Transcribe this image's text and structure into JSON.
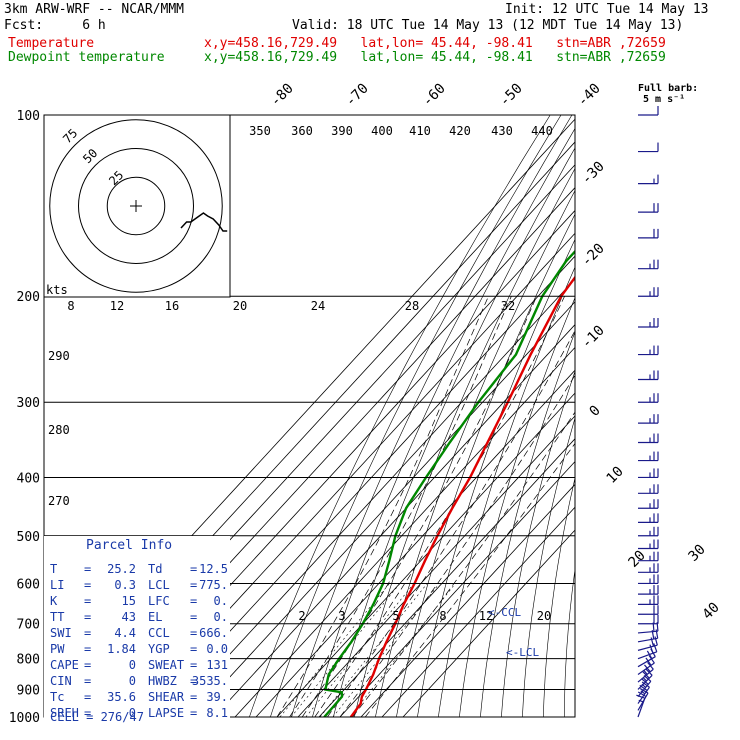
{
  "header": {
    "model": "3km ARW-WRF -- NCAR/MMM",
    "init": "Init: 12 UTC Tue 14 May 13",
    "fcst": "Fcst:     6 h",
    "valid": "Valid: 18 UTC Tue 14 May 13 (12 MDT Tue 14 May 13)",
    "temp_label": "Temperature",
    "temp_loc": "x,y=458.16,729.49   lat,lon= 45.44, -98.41   stn=ABR ,72659",
    "dew_label": "Dewpoint temperature",
    "dew_loc": "x,y=458.16,729.49   lat,lon= 45.44, -98.41   stn=ABR ,72659",
    "full_barb": "Full barb:",
    "full_barb_val": "5 m s⁻¹"
  },
  "colors": {
    "temperature": "#e00000",
    "dewpoint": "#008800",
    "parcel_text": "#1a3aa8",
    "hodograph": "#000000",
    "barbs": "#1a1a8a"
  },
  "chart_data": {
    "type": "line",
    "subtype": "skew-T log-p sounding",
    "y_axis": {
      "label": "",
      "scale": "log",
      "ticks": [
        100,
        200,
        300,
        400,
        500,
        600,
        700,
        800,
        900,
        1000
      ]
    },
    "isotherm_labels": [
      "-80",
      "-70",
      "-60",
      "-50",
      "-40",
      "-30",
      "-20",
      "-10",
      "0",
      "10",
      "20",
      "30",
      "40"
    ],
    "theta_labels": [
      "350",
      "360",
      "390",
      "400",
      "410",
      "420",
      "430",
      "440"
    ],
    "height_labels": [
      "290",
      "280",
      "270"
    ],
    "mixing_ratio_labels": [
      "2",
      "3",
      "5",
      "8",
      "12",
      "20"
    ],
    "hodograph": {
      "units": "kts",
      "ring_labels": [
        "25",
        "50",
        "75"
      ],
      "axis_ticks": [
        "8",
        "12",
        "16",
        "20",
        "24",
        "28",
        "32"
      ]
    },
    "annotations": {
      "ccl": "<-CCL",
      "lcl": "<-LCL"
    },
    "series": [
      {
        "name": "Temperature",
        "points": [
          [
            1000,
            25.2
          ],
          [
            950,
            24.0
          ],
          [
            925,
            21.5
          ],
          [
            900,
            20.3
          ],
          [
            850,
            17.2
          ],
          [
            800,
            13.0
          ],
          [
            750,
            9.2
          ],
          [
            700,
            5.5
          ],
          [
            650,
            1.0
          ],
          [
            600,
            -3.0
          ],
          [
            550,
            -8.0
          ],
          [
            500,
            -13.0
          ],
          [
            450,
            -18.0
          ],
          [
            400,
            -23.0
          ],
          [
            350,
            -30.0
          ],
          [
            300,
            -38.0
          ],
          [
            250,
            -48.0
          ],
          [
            200,
            -59.0
          ],
          [
            175,
            -62.0
          ],
          [
            150,
            -60.0
          ],
          [
            125,
            -59.0
          ],
          [
            110,
            -60.0
          ],
          [
            100,
            -62.0
          ]
        ]
      },
      {
        "name": "Dewpoint temperature",
        "points": [
          [
            1000,
            12.5
          ],
          [
            950,
            12.2
          ],
          [
            925,
            12.0
          ],
          [
            910,
            10.0
          ],
          [
            900,
            1.0
          ],
          [
            850,
            -4.0
          ],
          [
            800,
            -6.0
          ],
          [
            750,
            -7.5
          ],
          [
            700,
            -10.0
          ],
          [
            650,
            -13.5
          ],
          [
            600,
            -18.0
          ],
          [
            550,
            -25.0
          ],
          [
            500,
            -33.0
          ],
          [
            450,
            -40.0
          ],
          [
            400,
            -44.0
          ],
          [
            350,
            -48.0
          ],
          [
            300,
            -52.0
          ],
          [
            250,
            -55.0
          ],
          [
            200,
            -68.0
          ],
          [
            175,
            -72.0
          ],
          [
            150,
            -72.0
          ],
          [
            125,
            -75.0
          ],
          [
            110,
            -79.0
          ],
          [
            100,
            -82.0
          ]
        ]
      }
    ],
    "hodograph_trace": [
      [
        0,
        0
      ],
      [
        2,
        -1
      ],
      [
        4,
        -2
      ],
      [
        7,
        -2
      ],
      [
        10,
        -3
      ],
      [
        13,
        -4
      ],
      [
        16,
        -5
      ],
      [
        19,
        -4
      ],
      [
        23,
        -3
      ],
      [
        27,
        -1
      ],
      [
        30,
        1
      ],
      [
        33,
        1
      ]
    ]
  },
  "parcel_info": {
    "title": "Parcel Info",
    "rows": [
      {
        "k1": "T",
        "v1": "25.2",
        "k2": "Td",
        "v2": "12.5"
      },
      {
        "k1": "LI",
        "v1": "0.3",
        "k2": "LCL",
        "v2": "775."
      },
      {
        "k1": "K",
        "v1": "15",
        "k2": "LFC",
        "v2": "0."
      },
      {
        "k1": "TT",
        "v1": "43",
        "k2": "EL",
        "v2": "0."
      },
      {
        "k1": "SWI",
        "v1": "4.4",
        "k2": "CCL",
        "v2": "666."
      },
      {
        "k1": "PW",
        "v1": "1.84",
        "k2": "YGP",
        "v2": "0.0"
      },
      {
        "k1": "CAPE",
        "v1": "0",
        "k2": "SWEAT",
        "v2": "131"
      },
      {
        "k1": "CIN",
        "v1": "0",
        "k2": "HWBZ",
        "v2": "3535."
      },
      {
        "k1": "Tc",
        "v1": "35.6",
        "k2": "SHEAR",
        "v2": "39."
      },
      {
        "k1": "SREH",
        "v1": "0",
        "k2": "LAPSE",
        "v2": "8.1"
      }
    ],
    "cell": "CELL = 276/47"
  },
  "wind_barbs": [
    {
      "p": 1000,
      "dir": 200,
      "spd": 15
    },
    {
      "p": 975,
      "dir": 210,
      "spd": 20
    },
    {
      "p": 950,
      "dir": 215,
      "spd": 25
    },
    {
      "p": 925,
      "dir": 220,
      "spd": 25
    },
    {
      "p": 900,
      "dir": 225,
      "spd": 25
    },
    {
      "p": 875,
      "dir": 230,
      "spd": 25
    },
    {
      "p": 850,
      "dir": 235,
      "spd": 20
    },
    {
      "p": 825,
      "dir": 240,
      "spd": 20
    },
    {
      "p": 800,
      "dir": 250,
      "spd": 20
    },
    {
      "p": 775,
      "dir": 255,
      "spd": 20
    },
    {
      "p": 750,
      "dir": 260,
      "spd": 20
    },
    {
      "p": 725,
      "dir": 265,
      "spd": 20
    },
    {
      "p": 700,
      "dir": 270,
      "spd": 20
    },
    {
      "p": 675,
      "dir": 270,
      "spd": 20
    },
    {
      "p": 650,
      "dir": 270,
      "spd": 25
    },
    {
      "p": 625,
      "dir": 270,
      "spd": 25
    },
    {
      "p": 600,
      "dir": 270,
      "spd": 25
    },
    {
      "p": 575,
      "dir": 270,
      "spd": 25
    },
    {
      "p": 550,
      "dir": 270,
      "spd": 25
    },
    {
      "p": 525,
      "dir": 270,
      "spd": 25
    },
    {
      "p": 500,
      "dir": 270,
      "spd": 25
    },
    {
      "p": 475,
      "dir": 270,
      "spd": 25
    },
    {
      "p": 450,
      "dir": 270,
      "spd": 25
    },
    {
      "p": 425,
      "dir": 270,
      "spd": 25
    },
    {
      "p": 400,
      "dir": 270,
      "spd": 25
    },
    {
      "p": 375,
      "dir": 270,
      "spd": 25
    },
    {
      "p": 350,
      "dir": 270,
      "spd": 25
    },
    {
      "p": 325,
      "dir": 270,
      "spd": 25
    },
    {
      "p": 300,
      "dir": 270,
      "spd": 25
    },
    {
      "p": 275,
      "dir": 270,
      "spd": 25
    },
    {
      "p": 250,
      "dir": 270,
      "spd": 25
    },
    {
      "p": 225,
      "dir": 270,
      "spd": 25
    },
    {
      "p": 200,
      "dir": 270,
      "spd": 25
    },
    {
      "p": 180,
      "dir": 270,
      "spd": 25
    },
    {
      "p": 160,
      "dir": 270,
      "spd": 20
    },
    {
      "p": 145,
      "dir": 270,
      "spd": 20
    },
    {
      "p": 130,
      "dir": 270,
      "spd": 15
    },
    {
      "p": 115,
      "dir": 270,
      "spd": 10
    },
    {
      "p": 100,
      "dir": 270,
      "spd": 10
    }
  ]
}
